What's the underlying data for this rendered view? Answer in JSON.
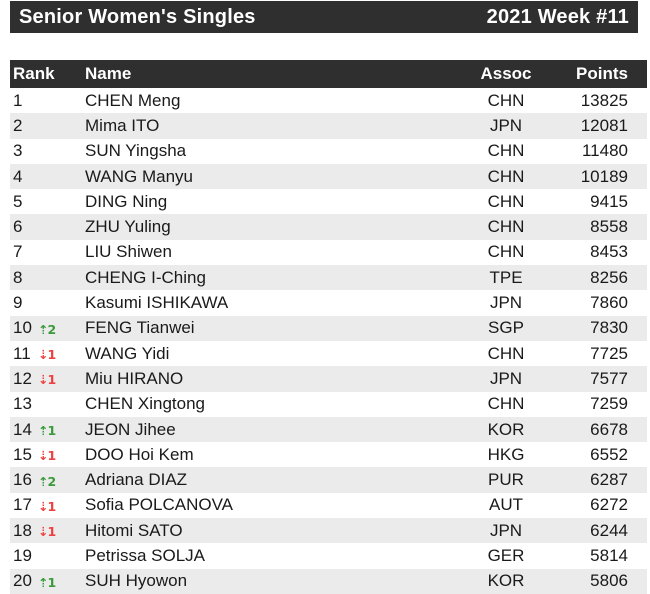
{
  "header": {
    "title": "Senior Women's Singles",
    "week": "2021 Week #11"
  },
  "icons": {
    "up_arrow_icon": "⇡",
    "down_arrow_icon": "⇣"
  },
  "colors": {
    "bar_background": "#2f2f2f",
    "bar_text": "#ffffff",
    "row_alt_background": "#ebebeb",
    "row_text": "#1a1a1a",
    "up_indicator": "#3a9a3c",
    "down_indicator": "#ee4141"
  },
  "table": {
    "columns": {
      "rank": "Rank",
      "name": "Name",
      "assoc": "Assoc",
      "points": "Points"
    },
    "rows": [
      {
        "rank": "1",
        "change_dir": "",
        "change_amount": "",
        "name": "CHEN Meng",
        "assoc": "CHN",
        "points": "13825"
      },
      {
        "rank": "2",
        "change_dir": "",
        "change_amount": "",
        "name": "Mima ITO",
        "assoc": "JPN",
        "points": "12081"
      },
      {
        "rank": "3",
        "change_dir": "",
        "change_amount": "",
        "name": "SUN Yingsha",
        "assoc": "CHN",
        "points": "11480"
      },
      {
        "rank": "4",
        "change_dir": "",
        "change_amount": "",
        "name": "WANG Manyu",
        "assoc": "CHN",
        "points": "10189"
      },
      {
        "rank": "5",
        "change_dir": "",
        "change_amount": "",
        "name": "DING Ning",
        "assoc": "CHN",
        "points": "9415"
      },
      {
        "rank": "6",
        "change_dir": "",
        "change_amount": "",
        "name": "ZHU Yuling",
        "assoc": "CHN",
        "points": "8558"
      },
      {
        "rank": "7",
        "change_dir": "",
        "change_amount": "",
        "name": "LIU Shiwen",
        "assoc": "CHN",
        "points": "8453"
      },
      {
        "rank": "8",
        "change_dir": "",
        "change_amount": "",
        "name": "CHENG I-Ching",
        "assoc": "TPE",
        "points": "8256"
      },
      {
        "rank": "9",
        "change_dir": "",
        "change_amount": "",
        "name": "Kasumi ISHIKAWA",
        "assoc": "JPN",
        "points": "7860"
      },
      {
        "rank": "10",
        "change_dir": "up",
        "change_amount": "2",
        "name": "FENG Tianwei",
        "assoc": "SGP",
        "points": "7830"
      },
      {
        "rank": "11",
        "change_dir": "down",
        "change_amount": "1",
        "name": "WANG Yidi",
        "assoc": "CHN",
        "points": "7725"
      },
      {
        "rank": "12",
        "change_dir": "down",
        "change_amount": "1",
        "name": "Miu HIRANO",
        "assoc": "JPN",
        "points": "7577"
      },
      {
        "rank": "13",
        "change_dir": "",
        "change_amount": "",
        "name": "CHEN Xingtong",
        "assoc": "CHN",
        "points": "7259"
      },
      {
        "rank": "14",
        "change_dir": "up",
        "change_amount": "1",
        "name": "JEON Jihee",
        "assoc": "KOR",
        "points": "6678"
      },
      {
        "rank": "15",
        "change_dir": "down",
        "change_amount": "1",
        "name": "DOO Hoi Kem",
        "assoc": "HKG",
        "points": "6552"
      },
      {
        "rank": "16",
        "change_dir": "up",
        "change_amount": "2",
        "name": "Adriana DIAZ",
        "assoc": "PUR",
        "points": "6287"
      },
      {
        "rank": "17",
        "change_dir": "down",
        "change_amount": "1",
        "name": "Sofia POLCANOVA",
        "assoc": "AUT",
        "points": "6272"
      },
      {
        "rank": "18",
        "change_dir": "down",
        "change_amount": "1",
        "name": "Hitomi SATO",
        "assoc": "JPN",
        "points": "6244"
      },
      {
        "rank": "19",
        "change_dir": "",
        "change_amount": "",
        "name": "Petrissa SOLJA",
        "assoc": "GER",
        "points": "5814"
      },
      {
        "rank": "20",
        "change_dir": "up",
        "change_amount": "1",
        "name": "SUH Hyowon",
        "assoc": "KOR",
        "points": "5806"
      }
    ]
  }
}
